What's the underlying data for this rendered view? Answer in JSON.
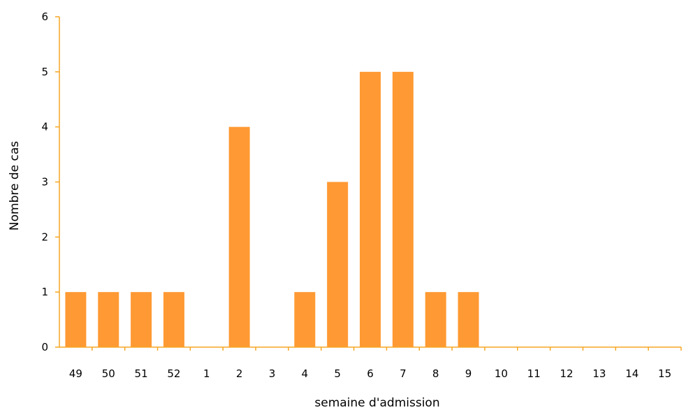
{
  "chart_data": {
    "type": "bar",
    "title": "",
    "xlabel": "semaine d'admission",
    "ylabel": "Nombre de cas",
    "categories": [
      "49",
      "50",
      "51",
      "52",
      "1",
      "2",
      "3",
      "4",
      "5",
      "6",
      "7",
      "8",
      "9",
      "10",
      "11",
      "12",
      "13",
      "14",
      "15"
    ],
    "values": [
      1,
      1,
      1,
      1,
      0,
      4,
      0,
      1,
      3,
      5,
      5,
      1,
      1,
      0,
      0,
      0,
      0,
      0,
      0
    ],
    "ylim": [
      0,
      6
    ],
    "yticks": [
      "0",
      "1",
      "2",
      "3",
      "4",
      "5",
      "6"
    ],
    "grid": false,
    "legend": "none",
    "bar_color": "#FF9933",
    "axis_color": "#F5A623"
  }
}
